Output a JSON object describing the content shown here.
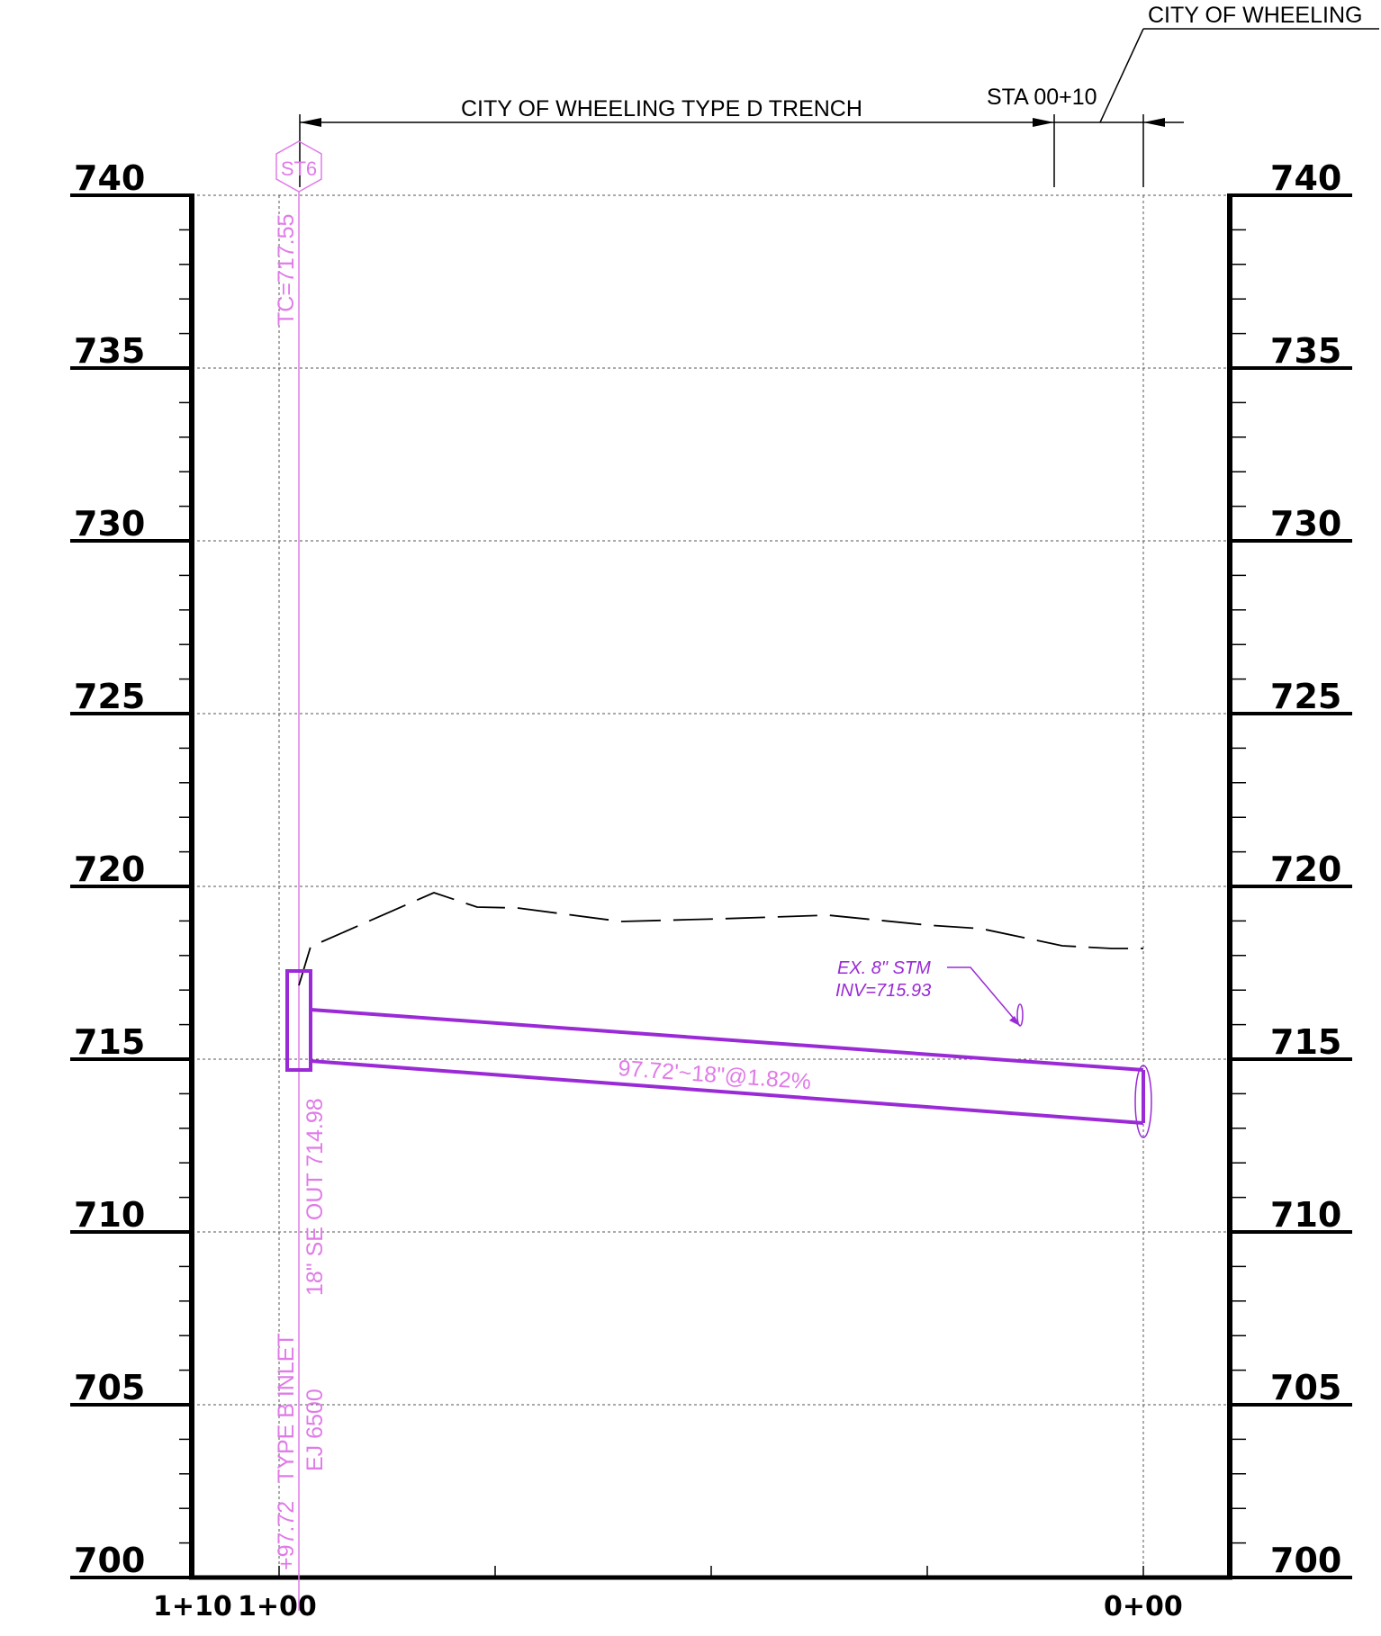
{
  "titles": {
    "city_label": "CITY OF WHEELING",
    "trench_label": "CITY OF WHEELING TYPE D TRENCH",
    "station_label": "STA 00+10"
  },
  "elevation_labels": [
    "740",
    "735",
    "730",
    "725",
    "720",
    "715",
    "710",
    "705",
    "700"
  ],
  "station_labels": {
    "left": "1+10",
    "start": "1+00",
    "end": "0+00"
  },
  "structure": {
    "tag": "ST6",
    "top_of_casting": "TC=717.55",
    "station_offset": "+97.72",
    "type": "TYPE B INLET",
    "casting": "EJ 6500",
    "outlet": "18\" SE OUT 714.98"
  },
  "pipe": {
    "label": "97.72'~18\"@1.82%"
  },
  "existing": {
    "line1": "EX. 8\" STM",
    "line2": "INV=715.93"
  },
  "colors": {
    "pipe": "#9a2ad6",
    "annotation": "#e07be8",
    "grid": "#000000"
  }
}
